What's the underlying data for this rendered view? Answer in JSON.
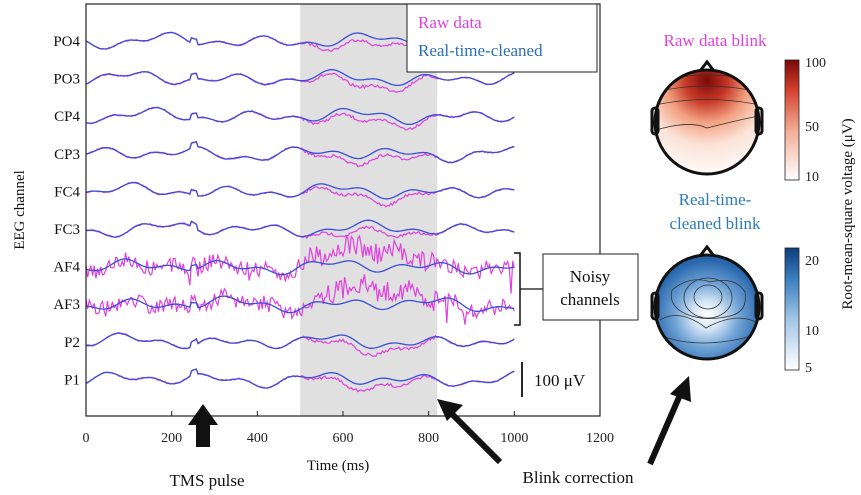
{
  "chart_data": {
    "type": "line",
    "xlabel": "Time (ms)",
    "ylabel": "EEG channel",
    "xlim": [
      0,
      1200
    ],
    "xticks": [
      0,
      200,
      400,
      600,
      800,
      1000,
      1200
    ],
    "x_range_of_traces": [
      0,
      1000
    ],
    "channels": [
      "PO4",
      "PO3",
      "CP4",
      "CP3",
      "FC4",
      "FC3",
      "AF4",
      "AF3",
      "P2",
      "P1"
    ],
    "series": [
      {
        "name": "Raw data",
        "color": "#e040e0"
      },
      {
        "name": "Real-time-cleaned",
        "color": "#3a4fd8"
      }
    ],
    "highlight_interval_ms": [
      500,
      820
    ],
    "scale_bar_label": "100 μV",
    "noisy_channels": [
      "AF4",
      "AF3"
    ],
    "noisy_label": "Noisy channels",
    "annotations": {
      "tms": "TMS pulse",
      "blink": "Blink correction"
    },
    "legend_placement": "top-right of plot"
  },
  "topomaps": {
    "raw": {
      "title": "Raw data blink",
      "title_color": "#e040e0",
      "colorbar_ticks": [
        "100",
        "50",
        "10"
      ],
      "colormap": [
        "#ffffff",
        "#f4b7a0",
        "#d8452f",
        "#8b0a0a"
      ]
    },
    "cleaned": {
      "title_line1": "Real-time-",
      "title_line2": "cleaned blink",
      "title_color": "#2c7bb6",
      "colorbar_ticks": [
        "20",
        "10",
        "5"
      ],
      "colormap": [
        "#ffffff",
        "#a6c8e8",
        "#3a7ec0",
        "#0b3c7a"
      ]
    },
    "colorbar_title": "Root-mean-square voltage (μV)"
  },
  "colors": {
    "raw": "#e040e0",
    "clean": "#3a4fd8",
    "highlight": "#dcdcdc"
  }
}
